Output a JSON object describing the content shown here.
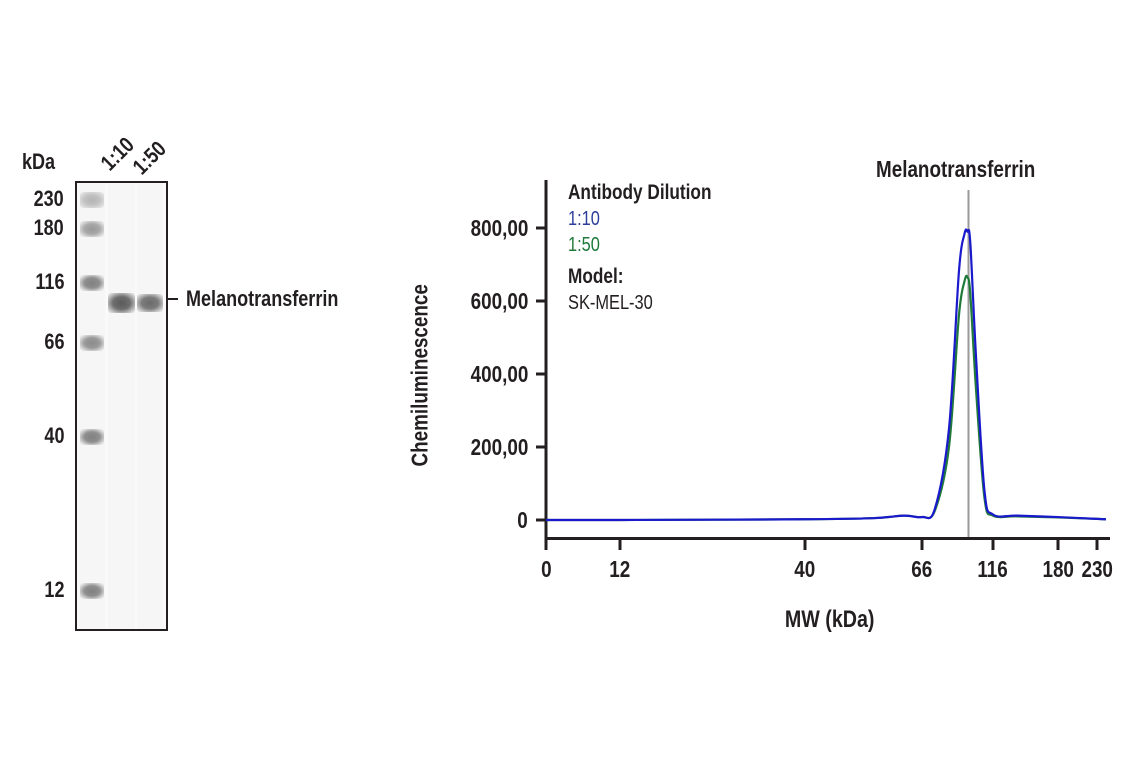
{
  "blot": {
    "unit_label": "kDa",
    "lanes": [
      {
        "label": "1:10"
      },
      {
        "label": "1:50"
      }
    ],
    "markers": [
      {
        "label": "230",
        "y": 199,
        "intensity": 0.45
      },
      {
        "label": "180",
        "y": 228,
        "intensity": 0.6
      },
      {
        "label": "116",
        "y": 282,
        "intensity": 0.75
      },
      {
        "label": "66",
        "y": 342,
        "intensity": 0.68
      },
      {
        "label": "40",
        "y": 436,
        "intensity": 0.75
      },
      {
        "label": "12",
        "y": 590,
        "intensity": 0.75
      }
    ],
    "target_band_label": "Melanotransferrin",
    "target_band_y": 300
  },
  "chart_data": {
    "type": "line",
    "title": "Melanotransferrin",
    "xlabel": "MW (kDa)",
    "ylabel": "Chemiluminescence",
    "x_tick_labels": [
      "0",
      "12",
      "40",
      "66",
      "116",
      "180",
      "230"
    ],
    "y_tick_labels": [
      "0",
      "200,00",
      "400,00",
      "600,00",
      "800,00"
    ],
    "y_ticks": [
      0,
      200,
      400,
      600,
      800
    ],
    "ylim": [
      -50,
      950
    ],
    "x_scale": "log-like (capillary MW)",
    "annotation": {
      "label": "Melanotransferrin",
      "x_kda": 98
    },
    "legend": {
      "title": "Antibody Dilution",
      "entries": [
        {
          "name": "1:10",
          "color": "#2d3e9a"
        },
        {
          "name": "1:50",
          "color": "#1f7a3a"
        }
      ],
      "model_title": "Model:",
      "model_value": "SK-MEL-30"
    },
    "series": [
      {
        "name": "1:10",
        "color": "#1a1acc",
        "peak_kda": 98,
        "peak_value": 790,
        "points_kda": [
          0,
          12,
          40,
          55,
          62,
          66,
          75,
          85,
          92,
          96,
          98,
          100,
          104,
          110,
          116,
          140,
          180,
          230,
          250
        ],
        "values": [
          0,
          0,
          2,
          5,
          12,
          8,
          30,
          250,
          680,
          785,
          790,
          760,
          450,
          80,
          15,
          12,
          8,
          3,
          2
        ]
      },
      {
        "name": "1:50",
        "color": "#1f7a3a",
        "peak_kda": 98,
        "peak_value": 665,
        "points_kda": [
          0,
          12,
          40,
          55,
          62,
          66,
          75,
          85,
          92,
          96,
          98,
          100,
          104,
          110,
          116,
          140,
          180,
          230,
          250
        ],
        "values": [
          0,
          0,
          2,
          5,
          12,
          8,
          25,
          200,
          560,
          655,
          665,
          620,
          360,
          60,
          12,
          10,
          7,
          3,
          2
        ]
      }
    ]
  },
  "colors": {
    "text": "#231f20",
    "series_1_10": "#1a1acc",
    "series_1_50": "#1f7a3a",
    "legend_1_10": "#2d3e9a",
    "legend_1_50": "#1f7a3a",
    "annotation_line": "#9a9a9a"
  }
}
